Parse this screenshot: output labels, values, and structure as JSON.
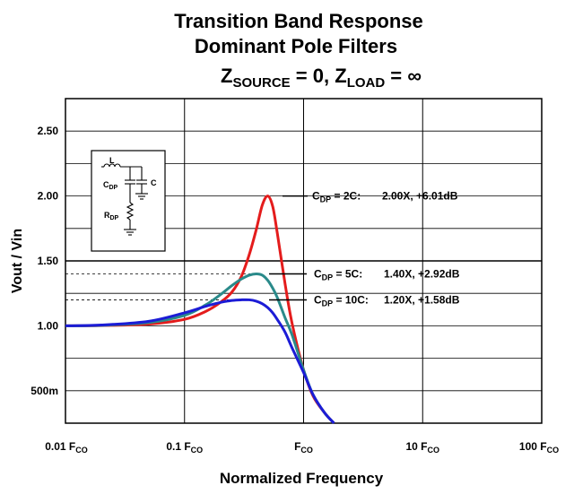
{
  "chart_data": {
    "type": "line",
    "title": {
      "line1": "Transition Band Response",
      "line2": "Dominant Pole Filters",
      "line3": {
        "z_source_main": "Z",
        "z_source_sub": "SOURCE",
        "z_source_value": " = 0, ",
        "z_load_main": "Z",
        "z_load_sub": "LOAD",
        "z_load_value": " = ∞"
      }
    },
    "xlabel": "Normalized Frequency",
    "ylabel": "Vout / Vin",
    "x_scale": "log",
    "xlim": [
      0.01,
      100
    ],
    "ylim": [
      0.25,
      2.75
    ],
    "grid": true,
    "x_ticks": [
      {
        "value": 0.01,
        "main": "0.01 F",
        "sub": "CO"
      },
      {
        "value": 0.1,
        "main": "0.1 F",
        "sub": "CO"
      },
      {
        "value": 1,
        "main": "F",
        "sub": "CO"
      },
      {
        "value": 10,
        "main": "10 F",
        "sub": "CO"
      },
      {
        "value": 100,
        "main": "100 F",
        "sub": "CO"
      }
    ],
    "y_ticks": [
      {
        "value": 2.5,
        "label": "2.50"
      },
      {
        "value": 2.0,
        "label": "2.00"
      },
      {
        "value": 1.5,
        "label": "1.50"
      },
      {
        "value": 1.0,
        "label": "1.00"
      },
      {
        "value": 0.5,
        "label": "500m"
      }
    ],
    "series": [
      {
        "color": "#e41c1c",
        "x": [
          0.01,
          0.02,
          0.05,
          0.1,
          0.15,
          0.2,
          0.25,
          0.3,
          0.35,
          0.4,
          0.45,
          0.5,
          0.55,
          0.6,
          0.7,
          0.8,
          1.0,
          1.2,
          1.5,
          1.8
        ],
        "y": [
          1.0,
          1.002,
          1.013,
          1.05,
          1.11,
          1.18,
          1.26,
          1.38,
          1.55,
          1.74,
          1.93,
          2.0,
          1.92,
          1.72,
          1.32,
          1.02,
          0.66,
          0.46,
          0.33,
          0.25
        ]
      },
      {
        "color": "#2a8a8a",
        "x": [
          0.01,
          0.02,
          0.05,
          0.1,
          0.15,
          0.2,
          0.25,
          0.3,
          0.35,
          0.4,
          0.45,
          0.5,
          0.55,
          0.6,
          0.7,
          0.8,
          1.0,
          1.2,
          1.5,
          1.8
        ],
        "y": [
          1.0,
          1.004,
          1.025,
          1.08,
          1.16,
          1.24,
          1.31,
          1.36,
          1.39,
          1.4,
          1.39,
          1.35,
          1.29,
          1.22,
          1.06,
          0.93,
          0.66,
          0.47,
          0.33,
          0.25
        ]
      },
      {
        "color": "#1c1cd6",
        "x": [
          0.01,
          0.02,
          0.05,
          0.1,
          0.15,
          0.2,
          0.25,
          0.3,
          0.35,
          0.4,
          0.45,
          0.5,
          0.55,
          0.6,
          0.7,
          0.8,
          1.0,
          1.2,
          1.5,
          1.8
        ],
        "y": [
          1.0,
          1.006,
          1.035,
          1.1,
          1.15,
          1.18,
          1.195,
          1.2,
          1.2,
          1.19,
          1.17,
          1.14,
          1.1,
          1.05,
          0.95,
          0.83,
          0.64,
          0.47,
          0.33,
          0.25
        ]
      }
    ],
    "annotations": [
      {
        "target_y": 2.0,
        "c_main": "C",
        "c_sub": "DP",
        "ratio": " = 2C:",
        "value": "2.00X, +6.01dB"
      },
      {
        "target_y": 1.4,
        "c_main": "C",
        "c_sub": "DP",
        "ratio": " = 5C:",
        "value": "1.40X, +2.92dB"
      },
      {
        "target_y": 1.2,
        "c_main": "C",
        "c_sub": "DP",
        "ratio": " = 10C:",
        "value": "1.20X, +1.58dB"
      }
    ],
    "schematic": {
      "inductor": "L",
      "cap_dp_main": "C",
      "cap_dp_sub": "DP",
      "cap": "C",
      "res_main": "R",
      "res_sub": "DP"
    }
  }
}
